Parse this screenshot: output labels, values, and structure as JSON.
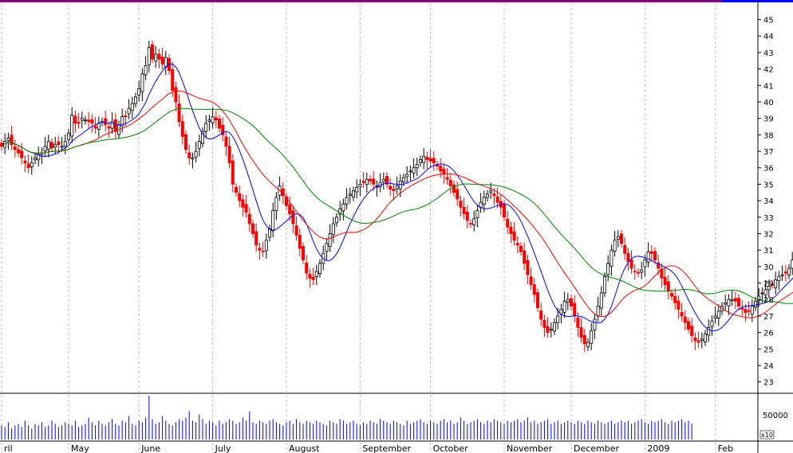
{
  "chart_data": {
    "type": "candlestick",
    "title": "",
    "xlabel": "",
    "ylabel": "",
    "price_axis": {
      "ylim": [
        22.5,
        45.8
      ],
      "ticks": [
        23,
        24,
        25,
        26,
        27,
        28,
        29,
        30,
        31,
        32,
        33,
        34,
        35,
        36,
        37,
        38,
        39,
        40,
        41,
        42,
        43,
        44,
        45
      ],
      "position": "right",
      "grid": "vertical-dashed"
    },
    "volume_axis": {
      "tick_label": "50000",
      "multiplier_label": "x10",
      "ylim": [
        0,
        100000
      ]
    },
    "months": [
      "ril",
      "May",
      "June",
      "July",
      "August",
      "September",
      "October",
      "November",
      "December",
      "2009",
      "Feb"
    ],
    "month_index": [
      0,
      20,
      41,
      63,
      85,
      107,
      128,
      150,
      170,
      192,
      213
    ],
    "colors": {
      "up": "#000000",
      "down": "#ff0000",
      "ma_short": "#0000ff",
      "ma_mid": "#ff0000",
      "ma_long": "#008000",
      "top_band": "#800080",
      "top_band_accent": "#0000ff"
    },
    "series": [
      {
        "name": "price",
        "close": [
          37.3,
          37.6,
          37.8,
          37.4,
          37.1,
          36.9,
          36.6,
          36.3,
          36.0,
          36.3,
          36.6,
          36.8,
          36.9,
          37.3,
          37.6,
          37.2,
          37.4,
          37.4,
          37.3,
          37.6,
          38.1,
          39.2,
          38.7,
          38.7,
          39.0,
          38.9,
          38.8,
          38.7,
          38.4,
          38.7,
          38.8,
          38.6,
          38.4,
          38.8,
          38.2,
          38.6,
          39.1,
          39.1,
          39.6,
          39.9,
          40.3,
          40.8,
          41.7,
          42.2,
          43.3,
          42.6,
          42.9,
          42.6,
          42.3,
          42.7,
          41.9,
          40.7,
          40.0,
          38.8,
          37.9,
          37.1,
          36.6,
          36.6,
          37.0,
          37.6,
          38.2,
          38.7,
          38.9,
          39.1,
          38.9,
          38.4,
          38.0,
          37.3,
          36.3,
          35.0,
          34.5,
          34.0,
          33.6,
          33.3,
          32.6,
          32.0,
          31.3,
          31.0,
          30.9,
          31.6,
          32.3,
          33.4,
          34.2,
          34.9,
          34.3,
          33.7,
          33.2,
          32.6,
          31.9,
          31.1,
          30.4,
          29.6,
          29.3,
          29.2,
          29.7,
          30.2,
          30.8,
          31.4,
          32.0,
          32.6,
          33.0,
          33.5,
          33.8,
          34.2,
          34.4,
          34.6,
          34.8,
          35.0,
          35.1,
          35.3,
          35.2,
          35.0,
          34.9,
          35.1,
          35.3,
          35.0,
          34.7,
          34.6,
          34.9,
          35.2,
          35.4,
          35.6,
          35.8,
          36.0,
          36.2,
          36.5,
          36.7,
          36.5,
          36.4,
          36.3,
          36.1,
          35.8,
          35.6,
          35.3,
          34.9,
          34.5,
          34.1,
          33.6,
          33.2,
          32.8,
          32.6,
          32.9,
          33.4,
          33.9,
          34.2,
          34.4,
          34.6,
          34.3,
          33.9,
          33.6,
          33.0,
          32.4,
          32.0,
          31.6,
          31.3,
          30.9,
          30.2,
          29.5,
          28.9,
          28.3,
          27.5,
          26.8,
          26.3,
          26.0,
          26.2,
          26.6,
          27.0,
          27.4,
          27.9,
          28.0,
          27.6,
          27.0,
          26.3,
          25.7,
          25.3,
          25.4,
          26.1,
          26.8,
          27.6,
          28.4,
          29.4,
          30.2,
          31.0,
          31.6,
          31.8,
          31.4,
          30.8,
          30.3,
          29.9,
          29.7,
          29.6,
          29.8,
          30.4,
          30.9,
          30.8,
          30.4,
          29.9,
          29.3,
          28.9,
          28.5,
          28.2,
          27.8,
          27.4,
          27.0,
          26.6,
          26.2,
          25.8,
          25.5,
          25.4,
          25.6,
          25.9,
          26.3,
          26.7,
          27.0,
          27.3,
          27.6,
          27.8,
          28.0,
          28.0,
          27.9,
          27.6,
          27.4,
          27.2,
          27.3,
          27.6,
          27.9,
          28.2,
          28.4,
          28.6,
          28.8,
          28.9,
          29.2,
          29.4,
          29.5,
          29.6,
          29.9,
          30.4,
          31.1,
          32.0,
          33.0
        ]
      },
      {
        "name": "ma_short",
        "values": [
          37.6,
          37.4,
          37.2,
          37.0,
          36.9,
          36.8,
          36.8,
          36.8,
          36.9,
          37.1,
          37.3,
          37.6,
          37.9,
          38.1,
          38.3,
          38.4,
          38.5,
          38.5,
          38.4,
          38.3,
          38.2,
          38.1,
          38.2,
          38.4,
          38.7,
          39.1,
          39.6,
          40.1,
          40.4,
          40.5,
          40.3,
          40.0,
          39.6,
          39.1,
          38.6,
          38.0,
          37.3,
          36.6,
          35.8,
          35.0,
          34.2,
          33.6,
          33.1,
          32.8,
          32.6,
          32.6,
          32.7,
          32.9,
          33.1,
          33.3,
          33.5,
          33.7,
          33.9,
          34.2,
          34.6,
          35.0,
          35.4,
          35.7,
          35.9,
          35.9,
          35.8,
          35.6,
          35.2,
          34.8,
          34.3,
          33.8,
          33.3,
          32.7,
          32.0,
          31.4,
          30.7,
          30.0,
          29.3,
          28.6,
          28.1,
          27.8,
          27.8,
          27.9,
          28.0,
          28.1,
          28.1,
          28.0,
          28.0,
          27.9,
          27.8,
          27.7,
          27.6,
          27.6,
          27.6,
          27.7,
          27.9,
          28.1,
          28.4,
          28.8,
          29.3
        ],
        "x_start": 0,
        "x_step": 2.2
      }
    ],
    "volume": [
      9,
      8,
      11,
      7,
      9,
      10,
      8,
      12,
      9,
      7,
      10,
      9,
      11,
      8,
      9,
      12,
      10,
      8,
      9,
      11,
      10,
      9,
      12,
      8,
      9,
      10,
      14,
      11,
      9,
      12,
      10,
      9,
      11,
      13,
      10,
      9,
      12,
      11,
      15,
      10,
      9,
      12,
      11,
      14,
      28,
      13,
      10,
      11,
      15,
      12,
      10,
      9,
      11,
      13,
      12,
      14,
      18,
      12,
      11,
      16,
      13,
      10,
      12,
      11,
      9,
      12,
      10,
      11,
      13,
      12,
      10,
      11,
      14,
      12,
      18,
      11,
      10,
      12,
      11,
      10,
      12,
      13,
      11,
      10,
      9,
      11,
      12,
      10,
      13,
      11,
      10,
      12,
      11,
      10,
      12,
      11,
      10,
      9,
      12,
      11,
      10,
      13,
      12,
      10,
      11,
      12,
      10,
      9,
      11,
      10,
      12,
      11,
      10,
      13,
      12,
      11,
      10,
      12,
      11,
      10,
      9,
      12,
      10,
      11,
      12,
      13,
      11,
      10,
      12,
      11,
      10,
      12,
      13,
      11,
      12,
      10,
      11,
      14,
      12,
      10,
      11,
      12,
      13,
      11,
      10,
      12,
      11,
      13,
      12,
      11,
      10,
      12,
      11,
      12,
      13,
      11,
      12,
      14,
      11,
      12,
      10,
      11,
      12,
      13,
      10,
      11,
      12,
      10,
      11,
      12,
      11,
      10,
      12,
      11,
      10,
      12,
      11,
      10,
      12,
      11,
      10,
      11,
      12,
      10,
      11,
      12,
      11,
      12,
      10,
      11,
      12,
      13,
      11,
      10,
      12,
      11,
      12,
      13,
      11,
      10,
      12,
      11,
      12,
      13,
      11,
      12,
      10
    ]
  }
}
